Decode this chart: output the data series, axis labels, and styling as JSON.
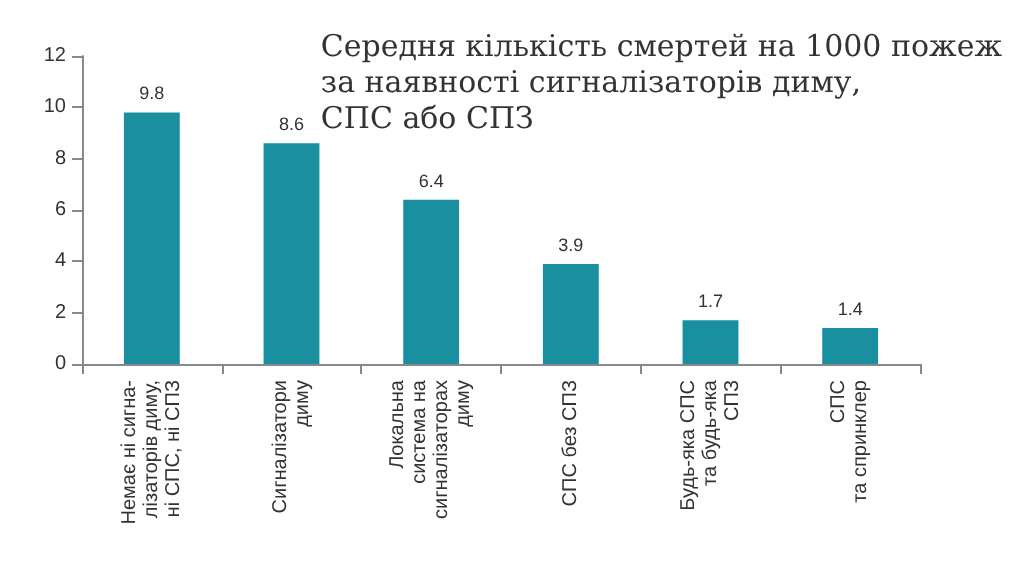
{
  "chart_data": {
    "type": "bar",
    "title": "Середня кількість смертей на 1000 пожеж\nза наявності сигналізаторів диму,\nСПС або СПЗ",
    "categories": [
      "Немає ні сигна-\nлізаторів диму,\nні СПС, ні СПЗ",
      "Сигналізатори\nдиму",
      "Локальна\nсистема на\nсигналізаторах\nдиму",
      "СПС без СПЗ",
      "Будь-яка СПС\nта будь-яка\nСПЗ",
      "СПС\nта спринклер"
    ],
    "values": [
      9.8,
      8.6,
      6.4,
      3.9,
      1.7,
      1.4
    ],
    "color": "#1a8fa0",
    "data_labels": true,
    "ylim": [
      0,
      12
    ],
    "yticks": [
      0,
      2,
      4,
      6,
      8,
      10,
      12
    ],
    "grid": false
  }
}
